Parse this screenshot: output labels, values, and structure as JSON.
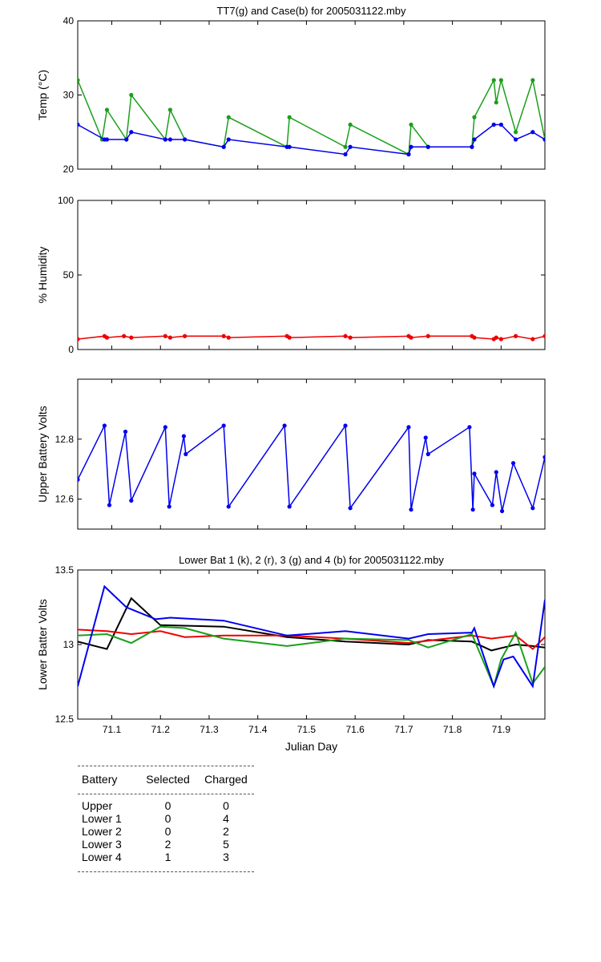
{
  "chart_data": [
    {
      "type": "line",
      "title": "TT7(g) and Case(b) for 2005031122.mby",
      "ylabel": "Temp  (°C)",
      "xlabel": "",
      "xlim": [
        71.03,
        71.99
      ],
      "ylim": [
        20,
        40
      ],
      "yticks": [
        20,
        30,
        40
      ],
      "series": [
        {
          "color": "#1aa01a",
          "x": [
            71.03,
            71.08,
            71.09,
            71.13,
            71.14,
            71.21,
            71.22,
            71.25,
            71.33,
            71.34,
            71.46,
            71.465,
            71.58,
            71.59,
            71.71,
            71.715,
            71.75,
            71.84,
            71.845,
            71.885,
            71.89,
            71.9,
            71.93,
            71.965,
            71.99
          ],
          "y": [
            32,
            24,
            28,
            24,
            30,
            24,
            28,
            24,
            23,
            27,
            23,
            27,
            23,
            26,
            22,
            26,
            23,
            23,
            27,
            32,
            29,
            32,
            25,
            32,
            24
          ]
        },
        {
          "color": "#0000ee",
          "x": [
            71.03,
            71.085,
            71.09,
            71.13,
            71.14,
            71.21,
            71.22,
            71.25,
            71.33,
            71.34,
            71.46,
            71.465,
            71.58,
            71.59,
            71.71,
            71.715,
            71.75,
            71.84,
            71.845,
            71.885,
            71.9,
            71.93,
            71.965,
            71.99
          ],
          "y": [
            26,
            24,
            24,
            24,
            25,
            24,
            24,
            24,
            23,
            24,
            23,
            23,
            22,
            23,
            22,
            23,
            23,
            23,
            24,
            26,
            26,
            24,
            25,
            24
          ]
        }
      ]
    },
    {
      "type": "line",
      "ylabel": "% Humidity",
      "xlim": [
        71.03,
        71.99
      ],
      "ylim": [
        0,
        100
      ],
      "yticks": [
        0,
        50,
        100
      ],
      "series": [
        {
          "color": "#ee0000",
          "x": [
            71.03,
            71.085,
            71.09,
            71.125,
            71.14,
            71.21,
            71.22,
            71.25,
            71.33,
            71.34,
            71.46,
            71.465,
            71.58,
            71.59,
            71.71,
            71.715,
            71.75,
            71.84,
            71.845,
            71.885,
            71.89,
            71.9,
            71.93,
            71.965,
            71.99
          ],
          "y": [
            7,
            9,
            8,
            9,
            8,
            9,
            8,
            9,
            9,
            8,
            9,
            8,
            9,
            8,
            9,
            8,
            9,
            9,
            8,
            7,
            8,
            7,
            9,
            7,
            9
          ]
        }
      ]
    },
    {
      "type": "line",
      "ylabel": "Upper Battery Volts",
      "xlim": [
        71.03,
        71.99
      ],
      "ylim": [
        12.5,
        13.0
      ],
      "yticks": [
        12.6,
        12.8
      ],
      "series": [
        {
          "color": "#0000ee",
          "x": [
            71.03,
            71.085,
            71.095,
            71.128,
            71.14,
            71.21,
            71.218,
            71.248,
            71.252,
            71.33,
            71.34,
            71.455,
            71.465,
            71.58,
            71.59,
            71.71,
            71.715,
            71.745,
            71.75,
            71.835,
            71.842,
            71.845,
            71.882,
            71.89,
            71.902,
            71.925,
            71.965,
            71.99
          ],
          "y": [
            12.665,
            12.845,
            12.58,
            12.825,
            12.595,
            12.84,
            12.575,
            12.81,
            12.75,
            12.845,
            12.575,
            12.845,
            12.575,
            12.845,
            12.57,
            12.84,
            12.565,
            12.805,
            12.75,
            12.84,
            12.565,
            12.685,
            12.58,
            12.69,
            12.56,
            12.72,
            12.57,
            12.74
          ]
        }
      ]
    },
    {
      "type": "line",
      "title": "Lower Bat 1 (k), 2 (r), 3 (g) and 4 (b) for 2005031122.mby",
      "ylabel": "Lower Batter Volts",
      "xlabel": "Julian Day",
      "xlim": [
        71.03,
        71.99
      ],
      "ylim": [
        12.5,
        13.5
      ],
      "yticks": [
        12.5,
        13,
        13.5
      ],
      "xticks": [
        71.1,
        71.2,
        71.3,
        71.4,
        71.5,
        71.6,
        71.7,
        71.8,
        71.9
      ],
      "series": [
        {
          "color": "#000000",
          "x": [
            71.03,
            71.09,
            71.14,
            71.2,
            71.33,
            71.46,
            71.58,
            71.71,
            71.75,
            71.84,
            71.88,
            71.93,
            71.965,
            71.99
          ],
          "y": [
            13.02,
            12.97,
            13.31,
            13.13,
            13.12,
            13.05,
            13.02,
            13.0,
            13.03,
            13.02,
            12.96,
            13.0,
            12.99,
            12.98
          ]
        },
        {
          "color": "#ee0000",
          "x": [
            71.03,
            71.09,
            71.14,
            71.2,
            71.25,
            71.33,
            71.46,
            71.58,
            71.71,
            71.84,
            71.88,
            71.93,
            71.965,
            71.99
          ],
          "y": [
            13.1,
            13.09,
            13.07,
            13.09,
            13.05,
            13.06,
            13.06,
            13.04,
            13.01,
            13.06,
            13.04,
            13.06,
            12.97,
            13.05
          ]
        },
        {
          "color": "#1aa01a",
          "x": [
            71.03,
            71.09,
            71.14,
            71.2,
            71.25,
            71.33,
            71.46,
            71.58,
            71.71,
            71.75,
            71.84,
            71.885,
            71.9,
            71.93,
            71.965,
            71.99
          ],
          "y": [
            13.06,
            13.07,
            13.01,
            13.12,
            13.11,
            13.04,
            12.99,
            13.04,
            13.03,
            12.98,
            13.07,
            12.72,
            12.9,
            13.08,
            12.74,
            12.85
          ]
        },
        {
          "color": "#0000ee",
          "x": [
            71.03,
            71.085,
            71.13,
            71.19,
            71.22,
            71.33,
            71.46,
            71.58,
            71.71,
            71.75,
            71.84,
            71.845,
            71.885,
            71.905,
            71.925,
            71.965,
            71.99
          ],
          "y": [
            12.72,
            13.39,
            13.25,
            13.17,
            13.18,
            13.16,
            13.06,
            13.09,
            13.04,
            13.07,
            13.08,
            13.11,
            12.72,
            12.9,
            12.92,
            12.72,
            13.3
          ]
        }
      ]
    }
  ],
  "summary": {
    "headers": [
      "Battery",
      "Selected",
      "Charged"
    ],
    "rows": [
      {
        "battery": "Upper",
        "selected": "0",
        "charged": "0"
      },
      {
        "battery": "Lower 1",
        "selected": "0",
        "charged": "4"
      },
      {
        "battery": "Lower 2",
        "selected": "0",
        "charged": "2"
      },
      {
        "battery": "Lower 3",
        "selected": "2",
        "charged": "5"
      },
      {
        "battery": "Lower 4",
        "selected": "1",
        "charged": "3"
      }
    ]
  }
}
